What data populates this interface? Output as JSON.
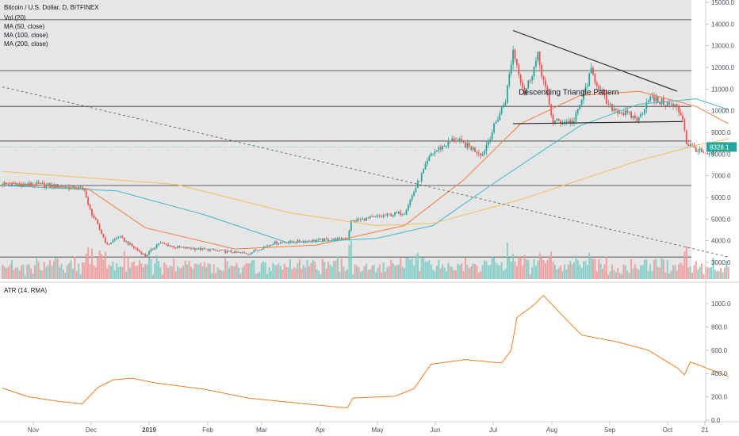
{
  "header": {
    "title": "Bitcoin / U.S. Dollar, D, BITFINEX",
    "indicators": [
      "Vol (20)",
      "MA (50, close)",
      "MA (100, close)",
      "MA (200, close)"
    ]
  },
  "atr_panel": {
    "title": "ATR (14, RMA)"
  },
  "colors": {
    "panel_bg": "#e6e6e6",
    "up": "#26a69a",
    "down": "#ef5350",
    "vol_up": "#80cbc4",
    "vol_down": "#ef9a9a",
    "ma50": "#f57c3b",
    "ma100": "#3fb8c8",
    "ma200": "#f0c05a",
    "atr": "#f57c1f",
    "last_price": "#26a69a",
    "hline": "#333333",
    "diag": "#555555"
  },
  "chart_data": [
    {
      "type": "candlestick",
      "title": "Bitcoin / U.S. Dollar, D, BITFINEX",
      "x_ticks": [
        "Nov",
        "Dec",
        "2019",
        "Feb",
        "Mar",
        "Apr",
        "May",
        "Jun",
        "Jul",
        "Aug",
        "Sep",
        "Oct",
        "21"
      ],
      "y_ticks": [
        "3000.0",
        "4000.0",
        "5000.0",
        "6000.0",
        "7000.0",
        "8000.0",
        "9000.0",
        "10000.0",
        "11000.0",
        "12000.0",
        "13000.0",
        "14000.0",
        "15000.0"
      ],
      "ylim": [
        2300,
        15000
      ],
      "last_price": "8328.1",
      "close_anchors": [
        [
          "2018-10-18",
          6600
        ],
        [
          "2018-11-13",
          6400
        ],
        [
          "2018-11-15",
          5600
        ],
        [
          "2018-11-20",
          4700
        ],
        [
          "2018-11-25",
          3800
        ],
        [
          "2018-12-01",
          4200
        ],
        [
          "2018-12-15",
          3300
        ],
        [
          "2018-12-22",
          3900
        ],
        [
          "2018-12-31",
          3700
        ],
        [
          "2019-01-15",
          3600
        ],
        [
          "2019-02-07",
          3400
        ],
        [
          "2019-02-20",
          3900
        ],
        [
          "2019-03-31",
          4100
        ],
        [
          "2019-04-02",
          4900
        ],
        [
          "2019-04-30",
          5300
        ],
        [
          "2019-05-14",
          8000
        ],
        [
          "2019-05-26",
          8700
        ],
        [
          "2019-06-10",
          8000
        ],
        [
          "2019-06-22",
          10500
        ],
        [
          "2019-06-26",
          12800
        ],
        [
          "2019-07-02",
          10800
        ],
        [
          "2019-07-09",
          12500
        ],
        [
          "2019-07-17",
          9500
        ],
        [
          "2019-07-28",
          9500
        ],
        [
          "2019-08-06",
          11800
        ],
        [
          "2019-08-15",
          10200
        ],
        [
          "2019-08-31",
          9600
        ],
        [
          "2019-09-05",
          10600
        ],
        [
          "2019-09-19",
          10200
        ],
        [
          "2019-09-23",
          9700
        ],
        [
          "2019-09-25",
          8500
        ],
        [
          "2019-10-06",
          7900
        ],
        [
          "2019-10-11",
          8300
        ],
        [
          "2019-10-17",
          8328
        ]
      ],
      "moving_averages": [
        {
          "name": "MA (50, close)",
          "points": [
            [
              "2018-10-01",
              6680
            ],
            [
              "2018-11-15",
              6400
            ],
            [
              "2018-12-15",
              4600
            ],
            [
              "2019-01-31",
              3620
            ],
            [
              "2019-03-15",
              3800
            ],
            [
              "2019-04-30",
              4700
            ],
            [
              "2019-05-31",
              6800
            ],
            [
              "2019-06-30",
              9400
            ],
            [
              "2019-07-31",
              10700
            ],
            [
              "2019-08-31",
              10900
            ],
            [
              "2019-09-30",
              10200
            ],
            [
              "2019-10-17",
              9400
            ]
          ]
        },
        {
          "name": "MA (100, close)",
          "points": [
            [
              "2018-10-01",
              6550
            ],
            [
              "2018-11-30",
              6300
            ],
            [
              "2019-01-15",
              5200
            ],
            [
              "2019-02-28",
              3900
            ],
            [
              "2019-04-15",
              4100
            ],
            [
              "2019-05-15",
              4700
            ],
            [
              "2019-06-15",
              6600
            ],
            [
              "2019-07-31",
              9300
            ],
            [
              "2019-08-31",
              10300
            ],
            [
              "2019-09-30",
              10550
            ],
            [
              "2019-10-17",
              10050
            ]
          ]
        },
        {
          "name": "MA (200, close)",
          "points": [
            [
              "2018-10-01",
              7200
            ],
            [
              "2018-12-31",
              6600
            ],
            [
              "2019-02-28",
              5300
            ],
            [
              "2019-04-15",
              4700
            ],
            [
              "2019-05-15",
              4800
            ],
            [
              "2019-06-30",
              5900
            ],
            [
              "2019-07-31",
              6800
            ],
            [
              "2019-08-31",
              7700
            ],
            [
              "2019-09-30",
              8400
            ],
            [
              "2019-10-17",
              8700
            ]
          ]
        }
      ],
      "horizontal_levels": [
        14200,
        11850,
        10200,
        8600,
        6550,
        3250
      ],
      "trend_lines": [
        {
          "name": "triangle-top",
          "from": [
            "2019-06-26",
            13700
          ],
          "to": [
            "2019-09-20",
            10900
          ]
        },
        {
          "name": "triangle-base",
          "from": [
            "2019-06-26",
            9400
          ],
          "to": [
            "2019-09-23",
            9500
          ]
        },
        {
          "name": "long-diagonal",
          "from": [
            "2018-10-01",
            11100
          ],
          "to": [
            "2019-10-17",
            3250
          ]
        }
      ],
      "annotations": [
        {
          "text": "Descending Triangle Pattern",
          "at": [
            "2019-08-01",
            10850
          ]
        }
      ]
    },
    {
      "type": "line",
      "title": "ATR (14, RMA)",
      "y_ticks": [
        "0.0",
        "200.0",
        "400.0",
        "600.0",
        "800.0",
        "1000.0"
      ],
      "ylim": [
        0,
        1100
      ],
      "series": [
        {
          "name": "ATR (14, RMA)",
          "points": [
            [
              "2018-10-01",
              275
            ],
            [
              "2018-10-15",
              200
            ],
            [
              "2018-10-31",
              160
            ],
            [
              "2018-11-12",
              140
            ],
            [
              "2018-11-20",
              280
            ],
            [
              "2018-11-28",
              345
            ],
            [
              "2018-12-08",
              360
            ],
            [
              "2018-12-20",
              320
            ],
            [
              "2019-01-15",
              265
            ],
            [
              "2019-02-07",
              190
            ],
            [
              "2019-02-28",
              155
            ],
            [
              "2019-03-15",
              130
            ],
            [
              "2019-03-31",
              105
            ],
            [
              "2019-04-03",
              190
            ],
            [
              "2019-04-25",
              205
            ],
            [
              "2019-05-05",
              270
            ],
            [
              "2019-05-14",
              480
            ],
            [
              "2019-06-01",
              520
            ],
            [
              "2019-06-20",
              490
            ],
            [
              "2019-06-25",
              600
            ],
            [
              "2019-06-28",
              880
            ],
            [
              "2019-07-07",
              990
            ],
            [
              "2019-07-12",
              1070
            ],
            [
              "2019-07-20",
              930
            ],
            [
              "2019-08-01",
              730
            ],
            [
              "2019-08-20",
              670
            ],
            [
              "2019-09-05",
              600
            ],
            [
              "2019-09-20",
              450
            ],
            [
              "2019-09-24",
              390
            ],
            [
              "2019-09-27",
              500
            ],
            [
              "2019-10-05",
              450
            ],
            [
              "2019-10-17",
              375
            ]
          ]
        }
      ]
    }
  ]
}
